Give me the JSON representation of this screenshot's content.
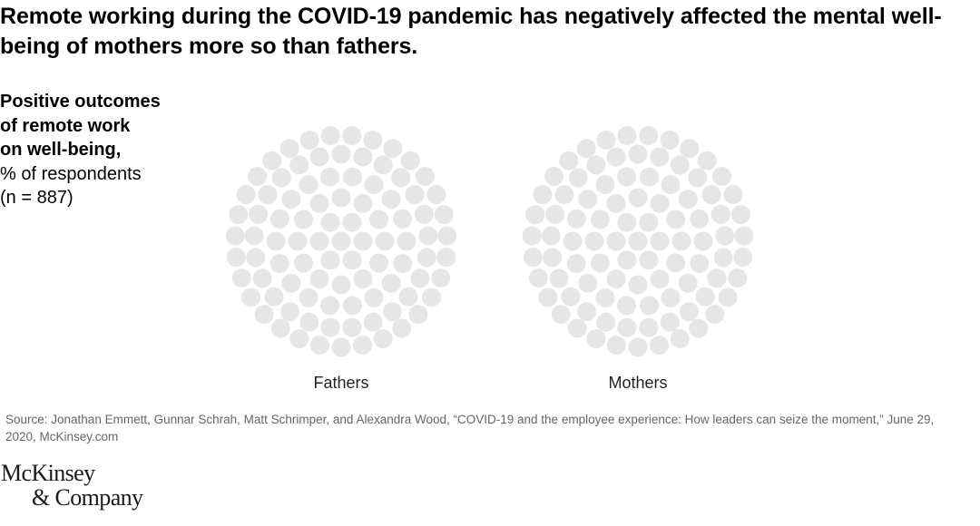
{
  "title": "Remote working during the COVID-19 pandemic has negatively affected the mental well-being of mothers more so than fathers.",
  "side_label": {
    "lines_bold": [
      "Positive outcomes",
      "of remote work",
      "on well-being,"
    ],
    "lines_regular": [
      "% of respondents",
      "(n = 887)"
    ]
  },
  "chart_data": {
    "type": "dot-cluster",
    "title": "Remote working during the COVID-19 pandemic has negatively affected the mental well-being of mothers more so than fathers.",
    "subtitle": "Positive outcomes of remote work on well-being, % of respondents (n = 887)",
    "categories": [
      "Fathers",
      "Mothers"
    ],
    "dot_color": "#e6e6e6",
    "background": "#ffffff"
  },
  "source": "Source: Jonathan Emmett, Gunnar Schrah, Matt Schrimper, and Alexandra Wood, “COVID-19 and the employee experience: How leaders can seize the moment,” June 29, 2020, McKinsey.com",
  "logo": {
    "line1": "McKinsey",
    "line2": "& Company"
  }
}
